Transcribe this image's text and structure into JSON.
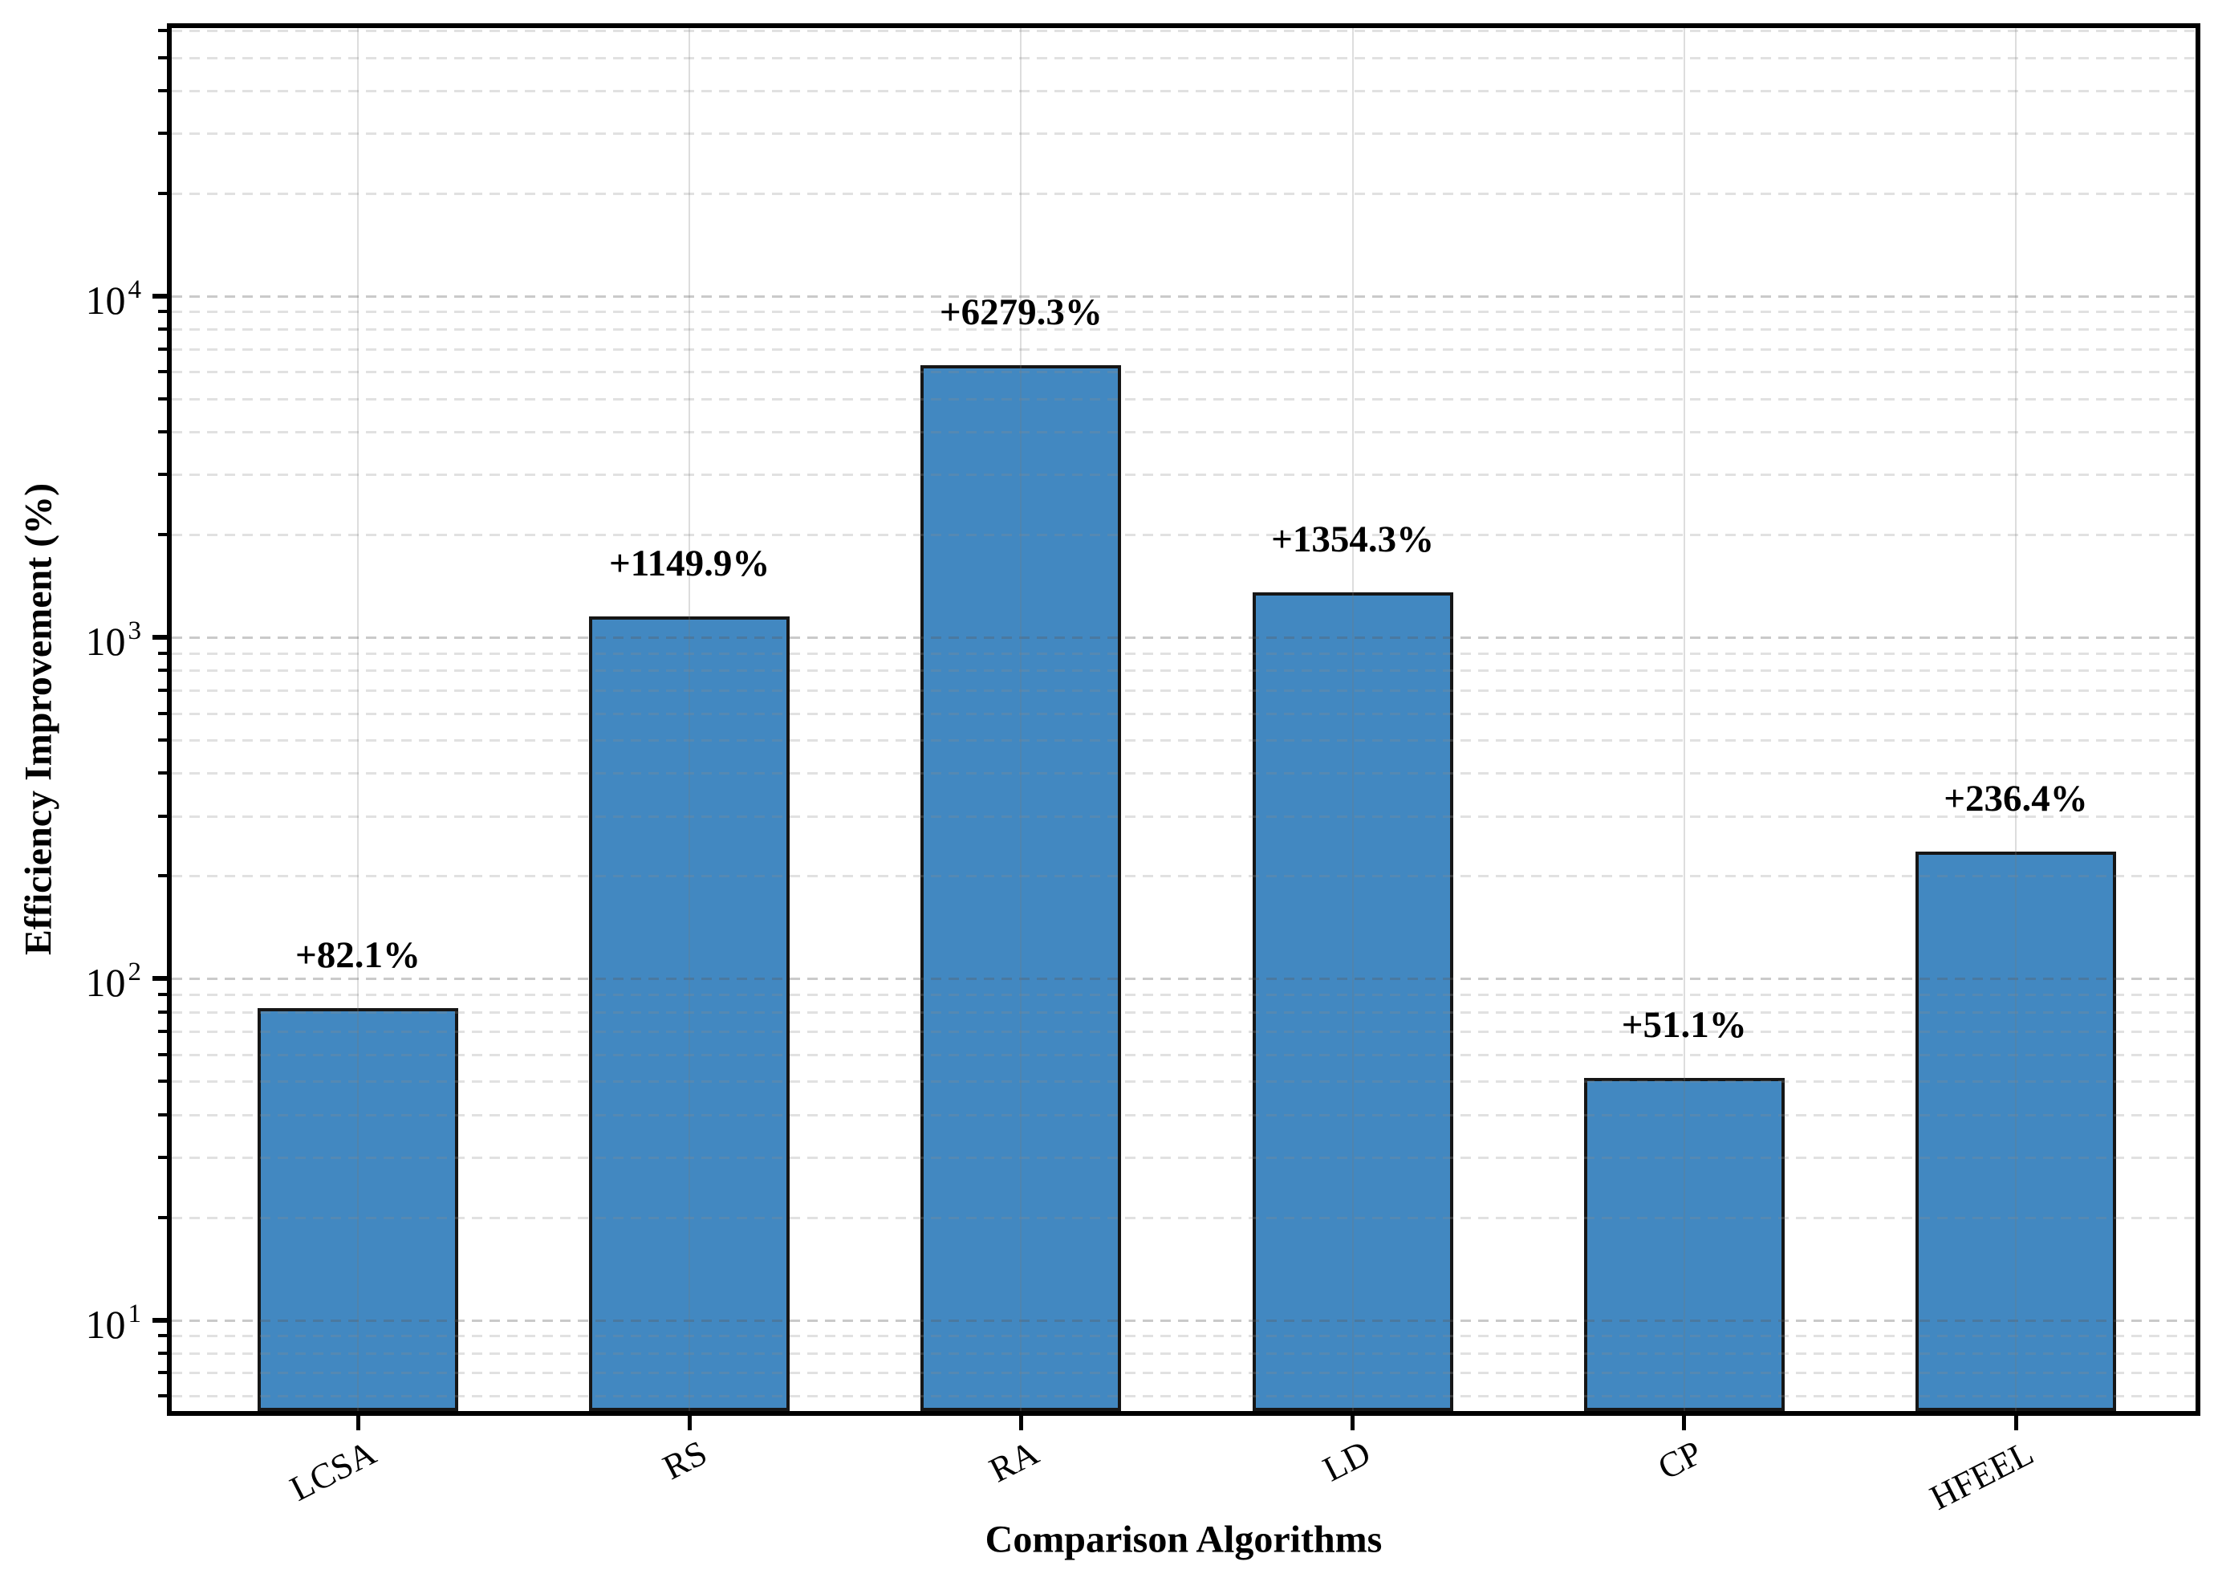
{
  "chart_data": {
    "type": "bar",
    "title": "",
    "xlabel": "Comparison Algorithms",
    "ylabel": "Efficiency Improvement (%)",
    "categories": [
      "LCSA",
      "RS",
      "RA",
      "LD",
      "CP",
      "HFEEL"
    ],
    "values": [
      82.1,
      1149.9,
      6279.3,
      1354.3,
      51.1,
      236.4
    ],
    "bar_labels": [
      "+82.1%",
      "+1149.9%",
      "+6279.3%",
      "+1354.3%",
      "+51.1%",
      "+236.4%"
    ],
    "series_name": "Efficiency Improvement",
    "yscale": "log",
    "ylim": [
      5.2,
      63000
    ],
    "y_major_tick_values": [
      10,
      100,
      1000,
      10000
    ],
    "y_tick_labels": [
      {
        "base": "10",
        "exp": "1"
      },
      {
        "base": "10",
        "exp": "2"
      },
      {
        "base": "10",
        "exp": "3"
      },
      {
        "base": "10",
        "exp": "4"
      }
    ],
    "grid": {
      "horizontal": "dashed major+minor",
      "vertical": "solid at category centers",
      "legend": "none"
    },
    "colors": {
      "bar_fill": "#4288c1",
      "bar_edge": "#161616",
      "axis": "#000000",
      "grid_major": "#d0d0d0",
      "grid_minor": "#e1e1e1",
      "vertical_grid": "#d8d8d8",
      "text": "#000000",
      "background": "#ffffff"
    }
  }
}
